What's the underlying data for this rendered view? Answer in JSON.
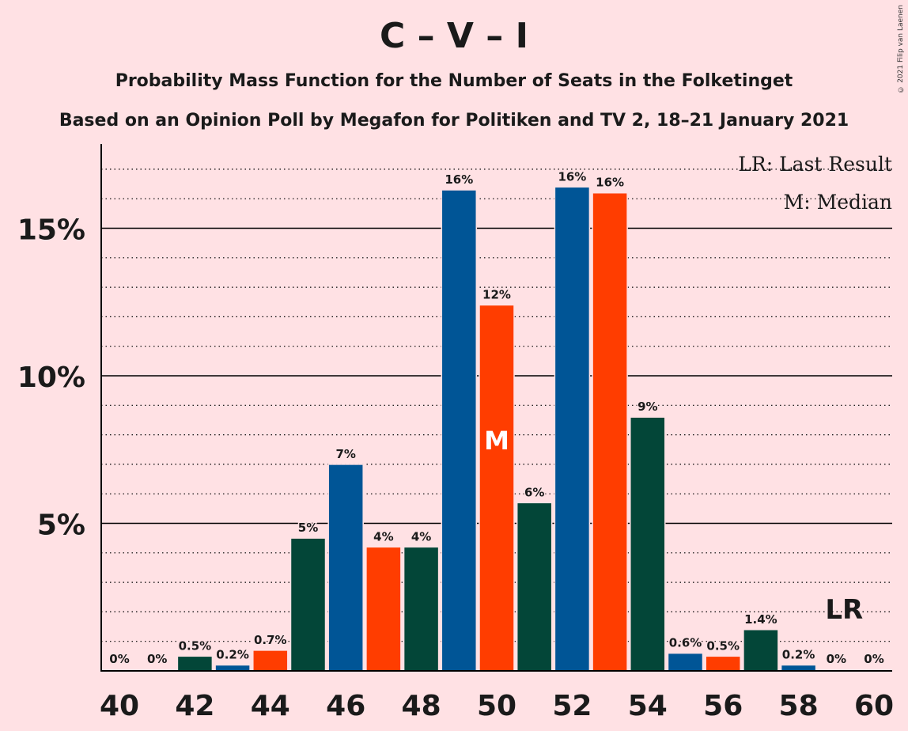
{
  "title": "C – V – I",
  "subtitle": "Probability Mass Function for the Number of Seats in the Folketinget",
  "subtitle2": "Based on an Opinion Poll by Megafon for Politiken and TV 2, 18–21 January 2021",
  "copyright": "© 2021 Filip van Laenen",
  "legend": {
    "lr": "LR: Last Result",
    "m": "M: Median"
  },
  "colors": {
    "background": "#FFE1E4",
    "blue": "#005596",
    "red": "#FF3D00",
    "green": "#034638"
  },
  "chart_data": {
    "type": "bar",
    "x": [
      40,
      41,
      42,
      43,
      44,
      45,
      46,
      47,
      48,
      49,
      50,
      51,
      52,
      53,
      54,
      55,
      56,
      57,
      58,
      59,
      60
    ],
    "values": [
      0,
      0,
      0.5,
      0.2,
      0.7,
      4.5,
      7.0,
      4.2,
      4.2,
      16.3,
      12.4,
      5.7,
      16.4,
      16.2,
      8.6,
      0.6,
      0.5,
      1.4,
      0.2,
      0,
      0
    ],
    "labels": [
      "0%",
      "0%",
      "0.5%",
      "0.2%",
      "0.7%",
      "5%",
      "7%",
      "4%",
      "4%",
      "16%",
      "12%",
      "6%",
      "16%",
      "16%",
      "9%",
      "0.6%",
      "0.5%",
      "1.4%",
      "0.2%",
      "0%",
      "0%"
    ],
    "bar_colors": [
      "green",
      "blue",
      "green",
      "blue",
      "red",
      "green",
      "blue",
      "red",
      "green",
      "blue",
      "red",
      "green",
      "blue",
      "red",
      "green",
      "blue",
      "red",
      "green",
      "blue",
      "red",
      "green"
    ],
    "x_ticks": [
      "40",
      "42",
      "44",
      "46",
      "48",
      "50",
      "52",
      "54",
      "56",
      "58",
      "60"
    ],
    "y_ticks": [
      "5%",
      "10%",
      "15%"
    ],
    "ylim": [
      0,
      17.8
    ],
    "median": 50,
    "median_label": "M",
    "last_result": 59,
    "last_result_label": "LR"
  }
}
